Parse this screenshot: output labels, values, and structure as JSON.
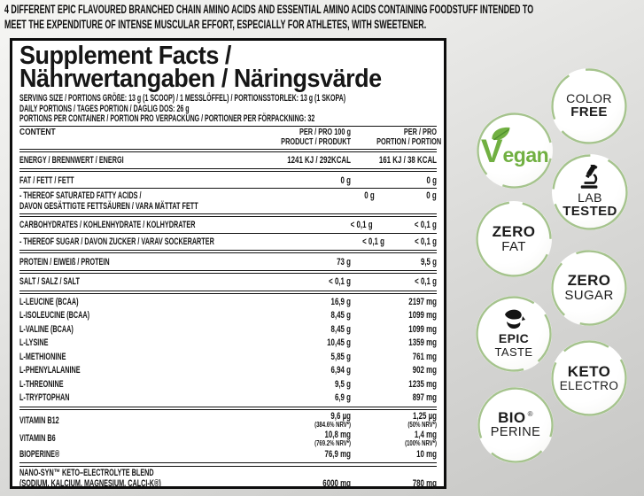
{
  "intro": {
    "line1": "4 DIFFERENT EPIC FLAVOURED BRANCHED CHAIN AMINO ACIDS AND ESSENTIAL AMINO ACIDS CONTAINING FOODSTUFF INTENDED TO",
    "line2": "MEET THE EXPENDITURE OF INTENSE MUSCULAR EFFORT, ESPECIALLY FOR ATHLETES, WITH SWEETENER."
  },
  "panel": {
    "title_line1": "Supplement Facts /",
    "title_line2": "Nährwertangaben / Näringsvärde",
    "serving": [
      "SERVING SIZE / PORTIONS GRÖßE: 13 g (1 SCOOP) / 1 MESSLÖFFEL) / PORTIONSSTORLEK: 13 g (1 SKOPA)",
      "DAILY PORTIONS / TAGES PORTION / DAGLIG DOS: 26 g",
      "PORTIONS PER CONTAINER / PORTION PRO VERPACKUNG / PORTIONER PER FÖRPACKNING: 32"
    ],
    "columns": {
      "content": "CONTENT",
      "col1_line1": "PER / PRO 100 g",
      "col1_line2": "PRODUCT / PRODUKT",
      "col2_line1": "PER / PRO",
      "col2_line2": "PORTION / PORTION"
    },
    "rows": [
      {
        "label": "ENERGY / BRENNWERT / ENERGI",
        "per100": "1241 KJ / 292KCAL",
        "portion": "161 KJ / 38 KCAL",
        "divider": "double"
      },
      {
        "label": "FAT / FETT / FETT",
        "per100": "0 g",
        "portion": "0 g",
        "divider": "thin"
      },
      {
        "label": "- THEREOF SATURATED FATTY ACIDS /",
        "label2": "DAVON GESÄTTIGTE FETTSÄUREN / VARA MÄTTAT FETT",
        "per100": "0 g",
        "portion": "0 g",
        "divider": "double",
        "valign": "top"
      },
      {
        "label": "CARBOHYDRATES / KOHLENHYDRATE / KOLHYDRATER",
        "per100": "< 0,1 g",
        "portion": "< 0,1 g",
        "divider": "thin"
      },
      {
        "label": "- THEREOF SUGAR / DAVON ZUCKER / VARAV SOCKERARTER",
        "per100": "< 0,1 g",
        "portion": "< 0,1 g",
        "divider": "double"
      },
      {
        "label": "PROTEIN / EIWEIß / PROTEIN",
        "per100": "73 g",
        "portion": "9,5 g",
        "divider": "double"
      },
      {
        "label": "SALT / SALZ / SALT",
        "per100": "< 0,1 g",
        "portion": "< 0,1 g",
        "divider": "double"
      },
      {
        "label": "L-LEUCINE (BCAA)",
        "per100": "16,9 g",
        "portion": "2197 mg",
        "divider": "none"
      },
      {
        "label": "L-ISOLEUCINE (BCAA)",
        "per100": "8,45 g",
        "portion": "1099 mg",
        "divider": "none"
      },
      {
        "label": "L-VALINE (BCAA)",
        "per100": "8,45 g",
        "portion": "1099 mg",
        "divider": "none"
      },
      {
        "label": "L-LYSINE",
        "per100": "10,45 g",
        "portion": "1359 mg",
        "divider": "none"
      },
      {
        "label": "L-METHIONINE",
        "per100": "5,85 g",
        "portion": "761 mg",
        "divider": "none"
      },
      {
        "label": "L-PHENYLALANINE",
        "per100": "6,94 g",
        "portion": "902 mg",
        "divider": "none"
      },
      {
        "label": "L-THREONINE",
        "per100": "9,5 g",
        "portion": "1235 mg",
        "divider": "none"
      },
      {
        "label": "L-TRYPTOPHAN",
        "per100": "6,9 g",
        "portion": "897 mg",
        "divider": "double"
      },
      {
        "label": "VITAMIN B12",
        "per100": "9,6 µg",
        "per100_note": "(384.6% NRV*)",
        "portion": "1,25 µg",
        "portion_note": "(50% NRV*)",
        "divider": "none"
      },
      {
        "label": "VITAMIN B6",
        "per100": "10,8 mg",
        "per100_note": "(769.2% NRV*)",
        "portion": "1,4 mg",
        "portion_note": "(100% NRV*)",
        "divider": "none"
      },
      {
        "label": "BIOPERINE®",
        "per100": "76,9 mg",
        "portion": "10 mg",
        "divider": "double"
      },
      {
        "label": "NANO-SYN™ KETO–ELECTROLYTE BLEND",
        "label2": "(SODIUM, KALCIUM, MAGNESIUM, CALCI-K®)",
        "per100": "6000 mg",
        "portion": "780 mg",
        "divider": "none",
        "valign": "bottom"
      }
    ]
  },
  "badges": {
    "color_free": {
      "line1": "COLOR",
      "line2": "FREE"
    },
    "vegan": {
      "letter": "V",
      "rest": "egan"
    },
    "lab_tested": {
      "line1": "LAB",
      "line2": "TESTED",
      "icon": "microscope-icon"
    },
    "zero_fat": {
      "line1": "ZERO",
      "line2": "FAT"
    },
    "zero_sugar": {
      "line1": "ZERO",
      "line2": "SUGAR"
    },
    "epic_taste": {
      "line1": "EPIC",
      "line2": "TASTE",
      "icon": "tongue-icon"
    },
    "keto_electro": {
      "line1": "KETO",
      "line2": "ELECTRO"
    },
    "bio_perine": {
      "line1": "BIO",
      "reg": "®",
      "line2": "PERINE"
    }
  },
  "colors": {
    "ring_green": "#a5c38d",
    "vegan_green": "#71b042",
    "text_dark": "#161616",
    "panel_bg": "#ffffff"
  }
}
